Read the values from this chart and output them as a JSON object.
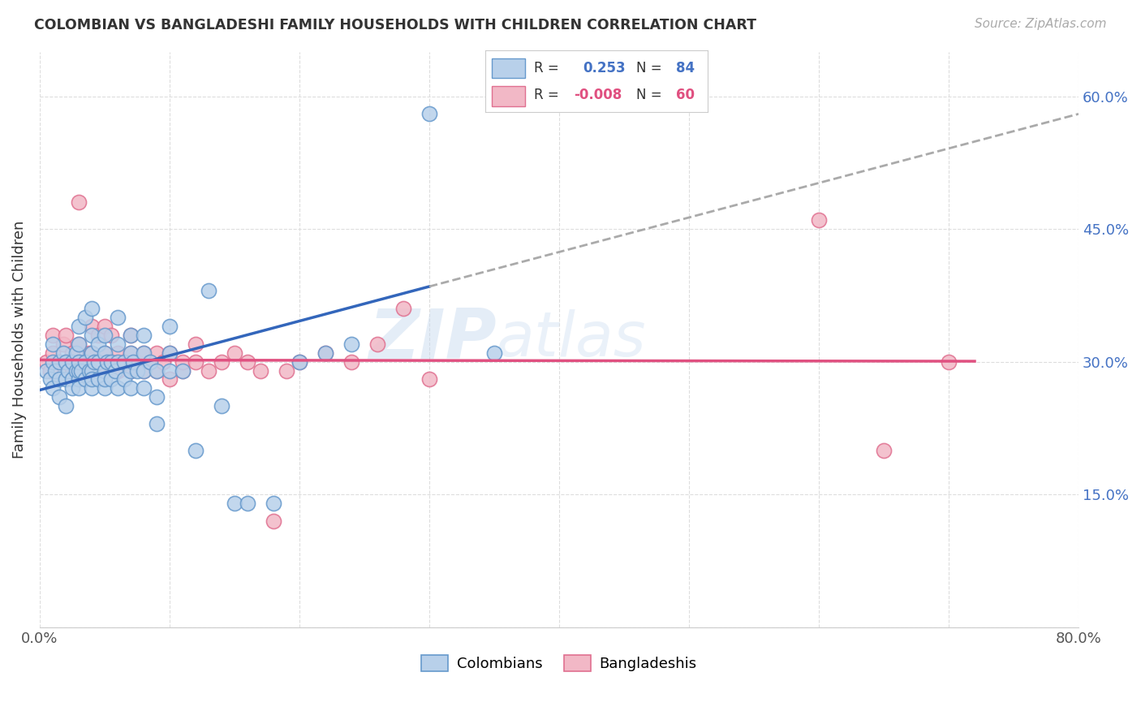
{
  "title": "COLOMBIAN VS BANGLADESHI FAMILY HOUSEHOLDS WITH CHILDREN CORRELATION CHART",
  "source": "Source: ZipAtlas.com",
  "ylabel": "Family Households with Children",
  "xlim": [
    0.0,
    0.8
  ],
  "ylim": [
    0.0,
    0.65
  ],
  "ytick_positions": [
    0.0,
    0.15,
    0.3,
    0.45,
    0.6
  ],
  "color_colombian_fill": "#b8d0ea",
  "color_colombian_edge": "#6699cc",
  "color_bangladeshi_fill": "#f2b8c6",
  "color_bangladeshi_edge": "#e07090",
  "color_line_colombian": "#3366bb",
  "color_line_bangladeshi": "#e05080",
  "color_dashed": "#aaaaaa",
  "watermark": "ZIPatlas",
  "colombian_x": [
    0.005,
    0.008,
    0.01,
    0.01,
    0.01,
    0.012,
    0.015,
    0.015,
    0.015,
    0.018,
    0.02,
    0.02,
    0.02,
    0.022,
    0.025,
    0.025,
    0.025,
    0.028,
    0.028,
    0.03,
    0.03,
    0.03,
    0.03,
    0.03,
    0.03,
    0.032,
    0.035,
    0.035,
    0.035,
    0.038,
    0.04,
    0.04,
    0.04,
    0.04,
    0.04,
    0.04,
    0.042,
    0.045,
    0.045,
    0.045,
    0.05,
    0.05,
    0.05,
    0.05,
    0.05,
    0.052,
    0.055,
    0.055,
    0.058,
    0.06,
    0.06,
    0.06,
    0.06,
    0.065,
    0.065,
    0.07,
    0.07,
    0.07,
    0.07,
    0.072,
    0.075,
    0.08,
    0.08,
    0.08,
    0.08,
    0.085,
    0.09,
    0.09,
    0.09,
    0.1,
    0.1,
    0.1,
    0.11,
    0.12,
    0.13,
    0.14,
    0.15,
    0.16,
    0.18,
    0.2,
    0.22,
    0.24,
    0.3,
    0.35
  ],
  "colombian_y": [
    0.29,
    0.28,
    0.3,
    0.27,
    0.32,
    0.29,
    0.28,
    0.3,
    0.26,
    0.31,
    0.28,
    0.3,
    0.25,
    0.29,
    0.28,
    0.3,
    0.27,
    0.29,
    0.31,
    0.28,
    0.29,
    0.3,
    0.27,
    0.32,
    0.34,
    0.29,
    0.28,
    0.3,
    0.35,
    0.29,
    0.27,
    0.29,
    0.31,
    0.33,
    0.36,
    0.28,
    0.3,
    0.28,
    0.3,
    0.32,
    0.27,
    0.29,
    0.31,
    0.33,
    0.28,
    0.3,
    0.28,
    0.3,
    0.29,
    0.27,
    0.3,
    0.32,
    0.35,
    0.28,
    0.3,
    0.27,
    0.29,
    0.31,
    0.33,
    0.3,
    0.29,
    0.27,
    0.29,
    0.31,
    0.33,
    0.3,
    0.23,
    0.26,
    0.29,
    0.29,
    0.31,
    0.34,
    0.29,
    0.2,
    0.38,
    0.25,
    0.14,
    0.14,
    0.14,
    0.3,
    0.31,
    0.32,
    0.58,
    0.31
  ],
  "bangladeshi_x": [
    0.005,
    0.008,
    0.01,
    0.01,
    0.015,
    0.018,
    0.02,
    0.02,
    0.025,
    0.025,
    0.03,
    0.03,
    0.03,
    0.035,
    0.038,
    0.04,
    0.04,
    0.04,
    0.045,
    0.045,
    0.05,
    0.05,
    0.05,
    0.055,
    0.055,
    0.06,
    0.06,
    0.065,
    0.07,
    0.07,
    0.07,
    0.075,
    0.08,
    0.08,
    0.085,
    0.09,
    0.09,
    0.095,
    0.1,
    0.1,
    0.11,
    0.11,
    0.12,
    0.12,
    0.13,
    0.14,
    0.15,
    0.16,
    0.17,
    0.18,
    0.19,
    0.2,
    0.22,
    0.24,
    0.26,
    0.28,
    0.3,
    0.6,
    0.65,
    0.7
  ],
  "bangladeshi_y": [
    0.3,
    0.29,
    0.31,
    0.33,
    0.3,
    0.32,
    0.3,
    0.33,
    0.29,
    0.31,
    0.3,
    0.32,
    0.48,
    0.29,
    0.31,
    0.29,
    0.31,
    0.34,
    0.3,
    0.33,
    0.29,
    0.31,
    0.34,
    0.3,
    0.33,
    0.29,
    0.31,
    0.3,
    0.29,
    0.31,
    0.33,
    0.3,
    0.29,
    0.31,
    0.3,
    0.29,
    0.31,
    0.3,
    0.28,
    0.31,
    0.29,
    0.3,
    0.3,
    0.32,
    0.29,
    0.3,
    0.31,
    0.3,
    0.29,
    0.12,
    0.29,
    0.3,
    0.31,
    0.3,
    0.32,
    0.36,
    0.28,
    0.46,
    0.2,
    0.3
  ]
}
